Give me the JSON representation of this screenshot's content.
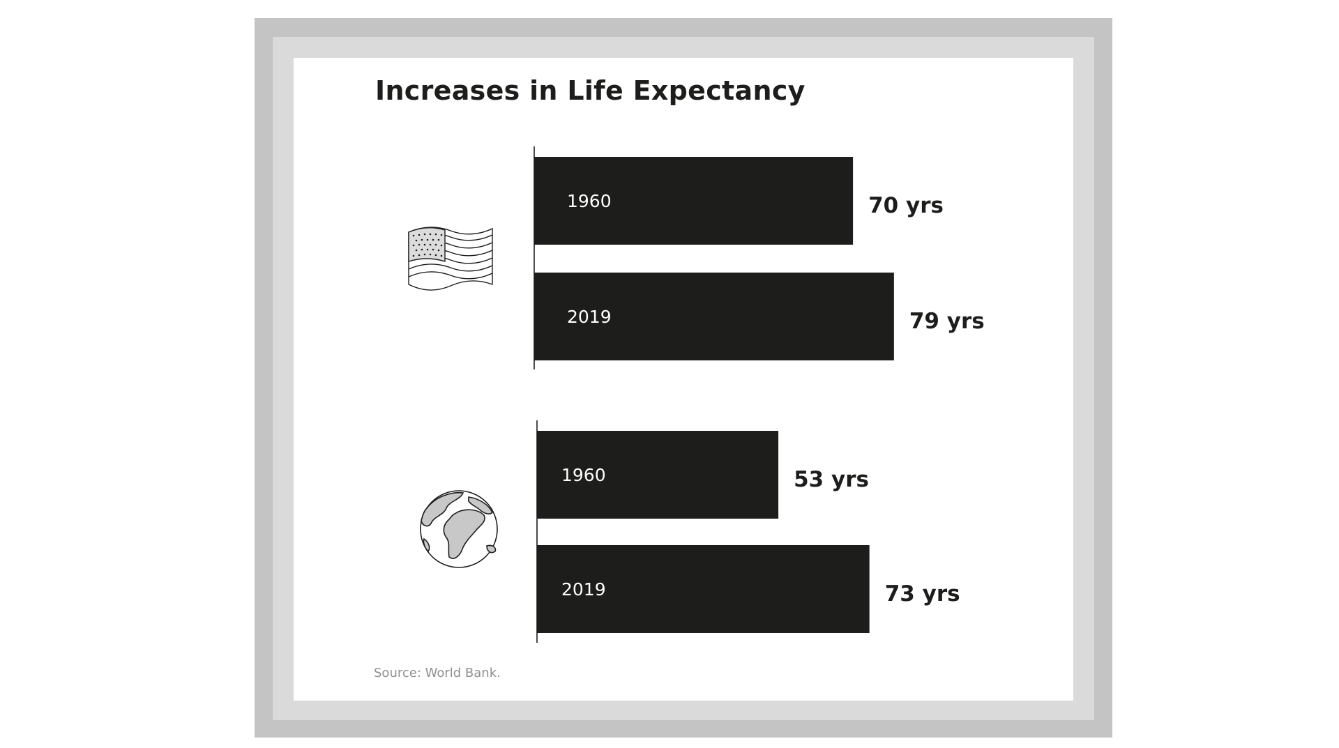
{
  "chart_data": {
    "type": "bar",
    "orientation": "horizontal",
    "title": "Increases in Life Expectancy",
    "source": "Source: World Bank.",
    "value_suffix": " yrs",
    "groups": [
      {
        "icon": "us-flag-icon",
        "bars": [
          {
            "category": "1960",
            "value": 70
          },
          {
            "category": "2019",
            "value": 79
          }
        ]
      },
      {
        "icon": "globe-icon",
        "bars": [
          {
            "category": "1960",
            "value": 53
          },
          {
            "category": "2019",
            "value": 73
          }
        ]
      }
    ]
  },
  "colors": {
    "bar": "#1d1d1b",
    "frame_outer": "#c4c4c4",
    "frame_inner": "#dadada",
    "panel": "#ffffff",
    "icon_fill": "#c8c8c8"
  }
}
